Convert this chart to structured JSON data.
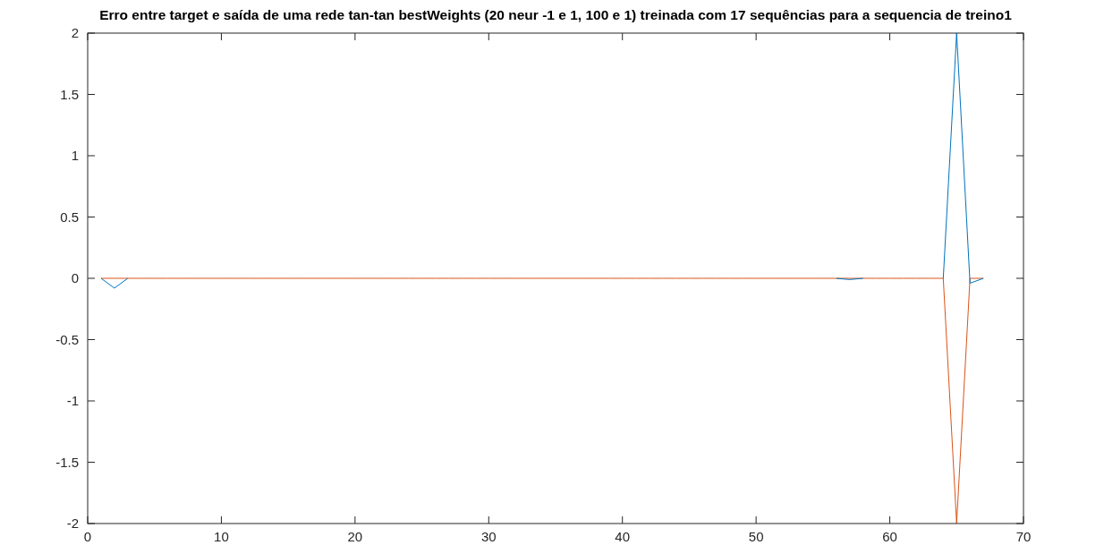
{
  "chart_data": {
    "type": "line",
    "title": "Erro entre target e saída de uma rede tan-tan bestWeights (20 neur -1 e 1, 100 e 1) treinada com 17 sequências para a sequencia de treino1",
    "x": [
      1,
      2,
      3,
      4,
      5,
      6,
      7,
      8,
      9,
      10,
      11,
      12,
      13,
      14,
      15,
      16,
      17,
      18,
      19,
      20,
      21,
      22,
      23,
      24,
      25,
      26,
      27,
      28,
      29,
      30,
      31,
      32,
      33,
      34,
      35,
      36,
      37,
      38,
      39,
      40,
      41,
      42,
      43,
      44,
      45,
      46,
      47,
      48,
      49,
      50,
      51,
      52,
      53,
      54,
      55,
      56,
      57,
      58,
      59,
      60,
      61,
      62,
      63,
      64,
      65,
      66,
      67
    ],
    "series": [
      {
        "color": "#0072bd",
        "values": [
          0,
          -0.08,
          0,
          null,
          null,
          null,
          null,
          null,
          null,
          null,
          null,
          null,
          null,
          null,
          null,
          null,
          null,
          null,
          null,
          null,
          null,
          null,
          null,
          null,
          null,
          null,
          null,
          null,
          null,
          null,
          null,
          null,
          null,
          null,
          null,
          null,
          null,
          null,
          null,
          null,
          null,
          null,
          null,
          null,
          null,
          null,
          null,
          null,
          null,
          null,
          null,
          null,
          null,
          null,
          null,
          0,
          -0.01,
          0,
          null,
          null,
          null,
          null,
          null,
          0,
          2,
          -0.04,
          0
        ]
      },
      {
        "color": "#d95319",
        "values": [
          0,
          0,
          0,
          0,
          0,
          0,
          0,
          0,
          0,
          0,
          0,
          0,
          0,
          0,
          0,
          0,
          0,
          0,
          0,
          0,
          0,
          0,
          0,
          0,
          0,
          0,
          0,
          0,
          0,
          0,
          0,
          0,
          0,
          0,
          0,
          0,
          0,
          0,
          0,
          0,
          0,
          0,
          0,
          0,
          0,
          0,
          0,
          0,
          0,
          0,
          0,
          0,
          0,
          0,
          0,
          0,
          0,
          0,
          0,
          0,
          0,
          0,
          0,
          0,
          -2,
          0,
          0
        ]
      }
    ],
    "xlim": [
      0,
      70
    ],
    "xticks": [
      0,
      10,
      20,
      30,
      40,
      50,
      60,
      70
    ],
    "ylim": [
      -2,
      2
    ],
    "yticks": [
      -2,
      -1.5,
      -1,
      -0.5,
      0,
      0.5,
      1,
      1.5,
      2
    ],
    "grid": false,
    "line_style": "solid",
    "marker": "none"
  }
}
